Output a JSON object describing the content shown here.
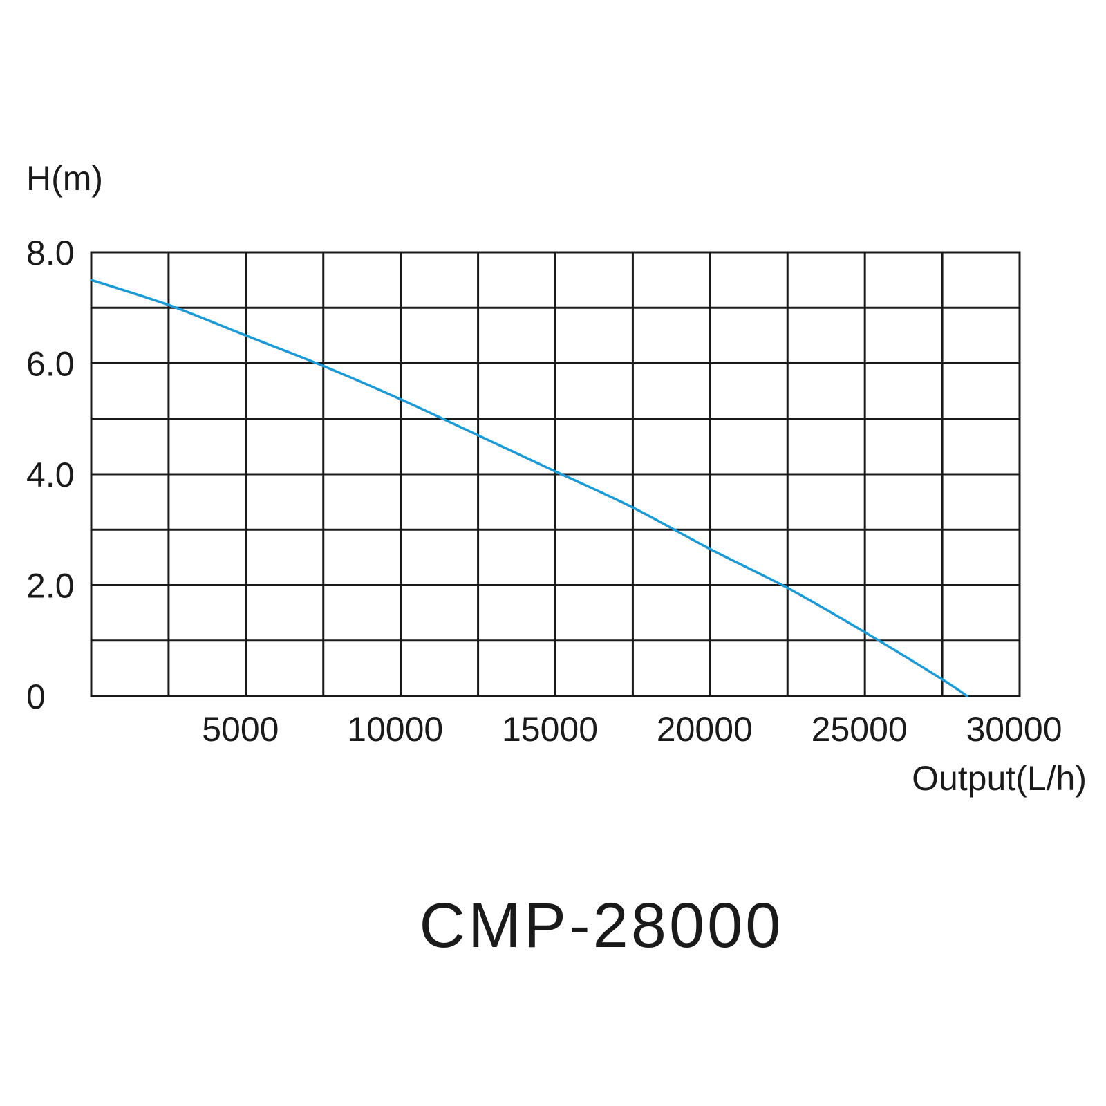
{
  "chart_data": {
    "type": "line",
    "title": "CMP-28000",
    "xlabel": "Output(L/h)",
    "ylabel": "H(m)",
    "xlim": [
      0,
      30000
    ],
    "ylim": [
      0,
      8
    ],
    "x_ticks": [
      5000,
      10000,
      15000,
      20000,
      25000,
      30000
    ],
    "x_tick_labels": [
      "5000",
      "10000",
      "15000",
      "20000",
      "25000",
      "30000"
    ],
    "y_ticks": [
      0,
      2,
      4,
      6,
      8
    ],
    "y_tick_labels": [
      "0",
      "2.0",
      "4.0",
      "6.0",
      "8.0"
    ],
    "x_grid_step": 2500,
    "y_grid_step": 1,
    "grid": true,
    "series": [
      {
        "color": "#1a9ad6",
        "x": [
          0,
          2500,
          5000,
          7500,
          10000,
          12500,
          15000,
          17500,
          20000,
          22500,
          25000,
          27500,
          28300
        ],
        "y": [
          7.5,
          7.05,
          6.5,
          5.95,
          5.35,
          4.7,
          4.05,
          3.4,
          2.65,
          1.95,
          1.15,
          0.3,
          0
        ]
      }
    ]
  }
}
